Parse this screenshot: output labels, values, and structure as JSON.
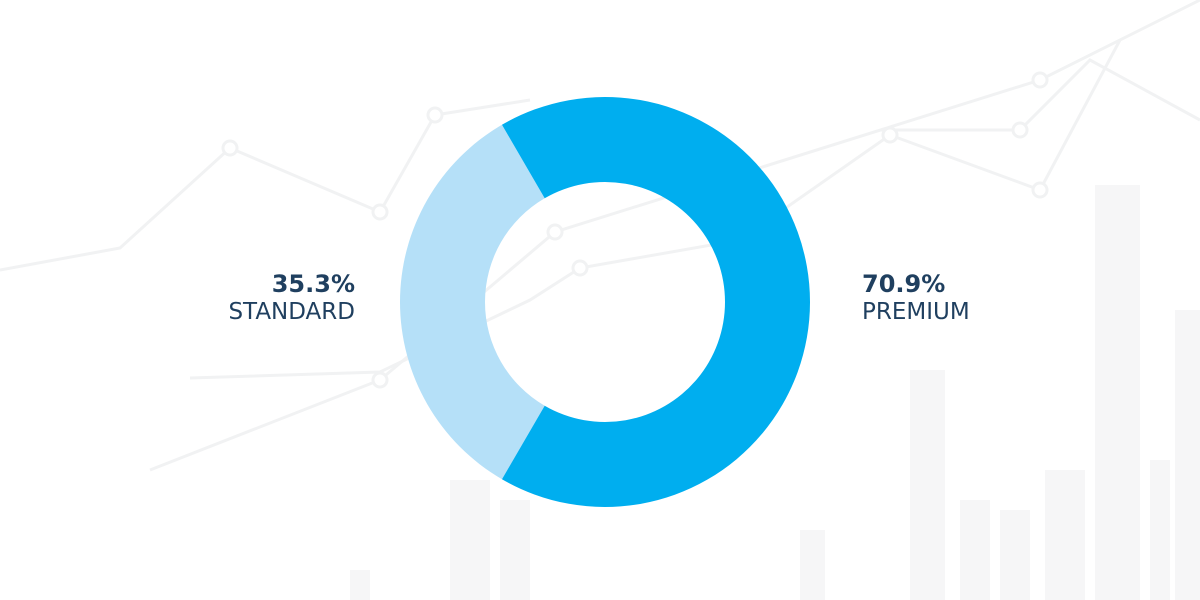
{
  "chart_data": {
    "type": "donut",
    "categories": [
      "STANDARD",
      "PREMIUM"
    ],
    "values": [
      35.3,
      70.9
    ],
    "value_labels": [
      "35.3%",
      "70.9%"
    ],
    "colors": [
      "#b5e0f8",
      "#00aeef"
    ]
  }
}
